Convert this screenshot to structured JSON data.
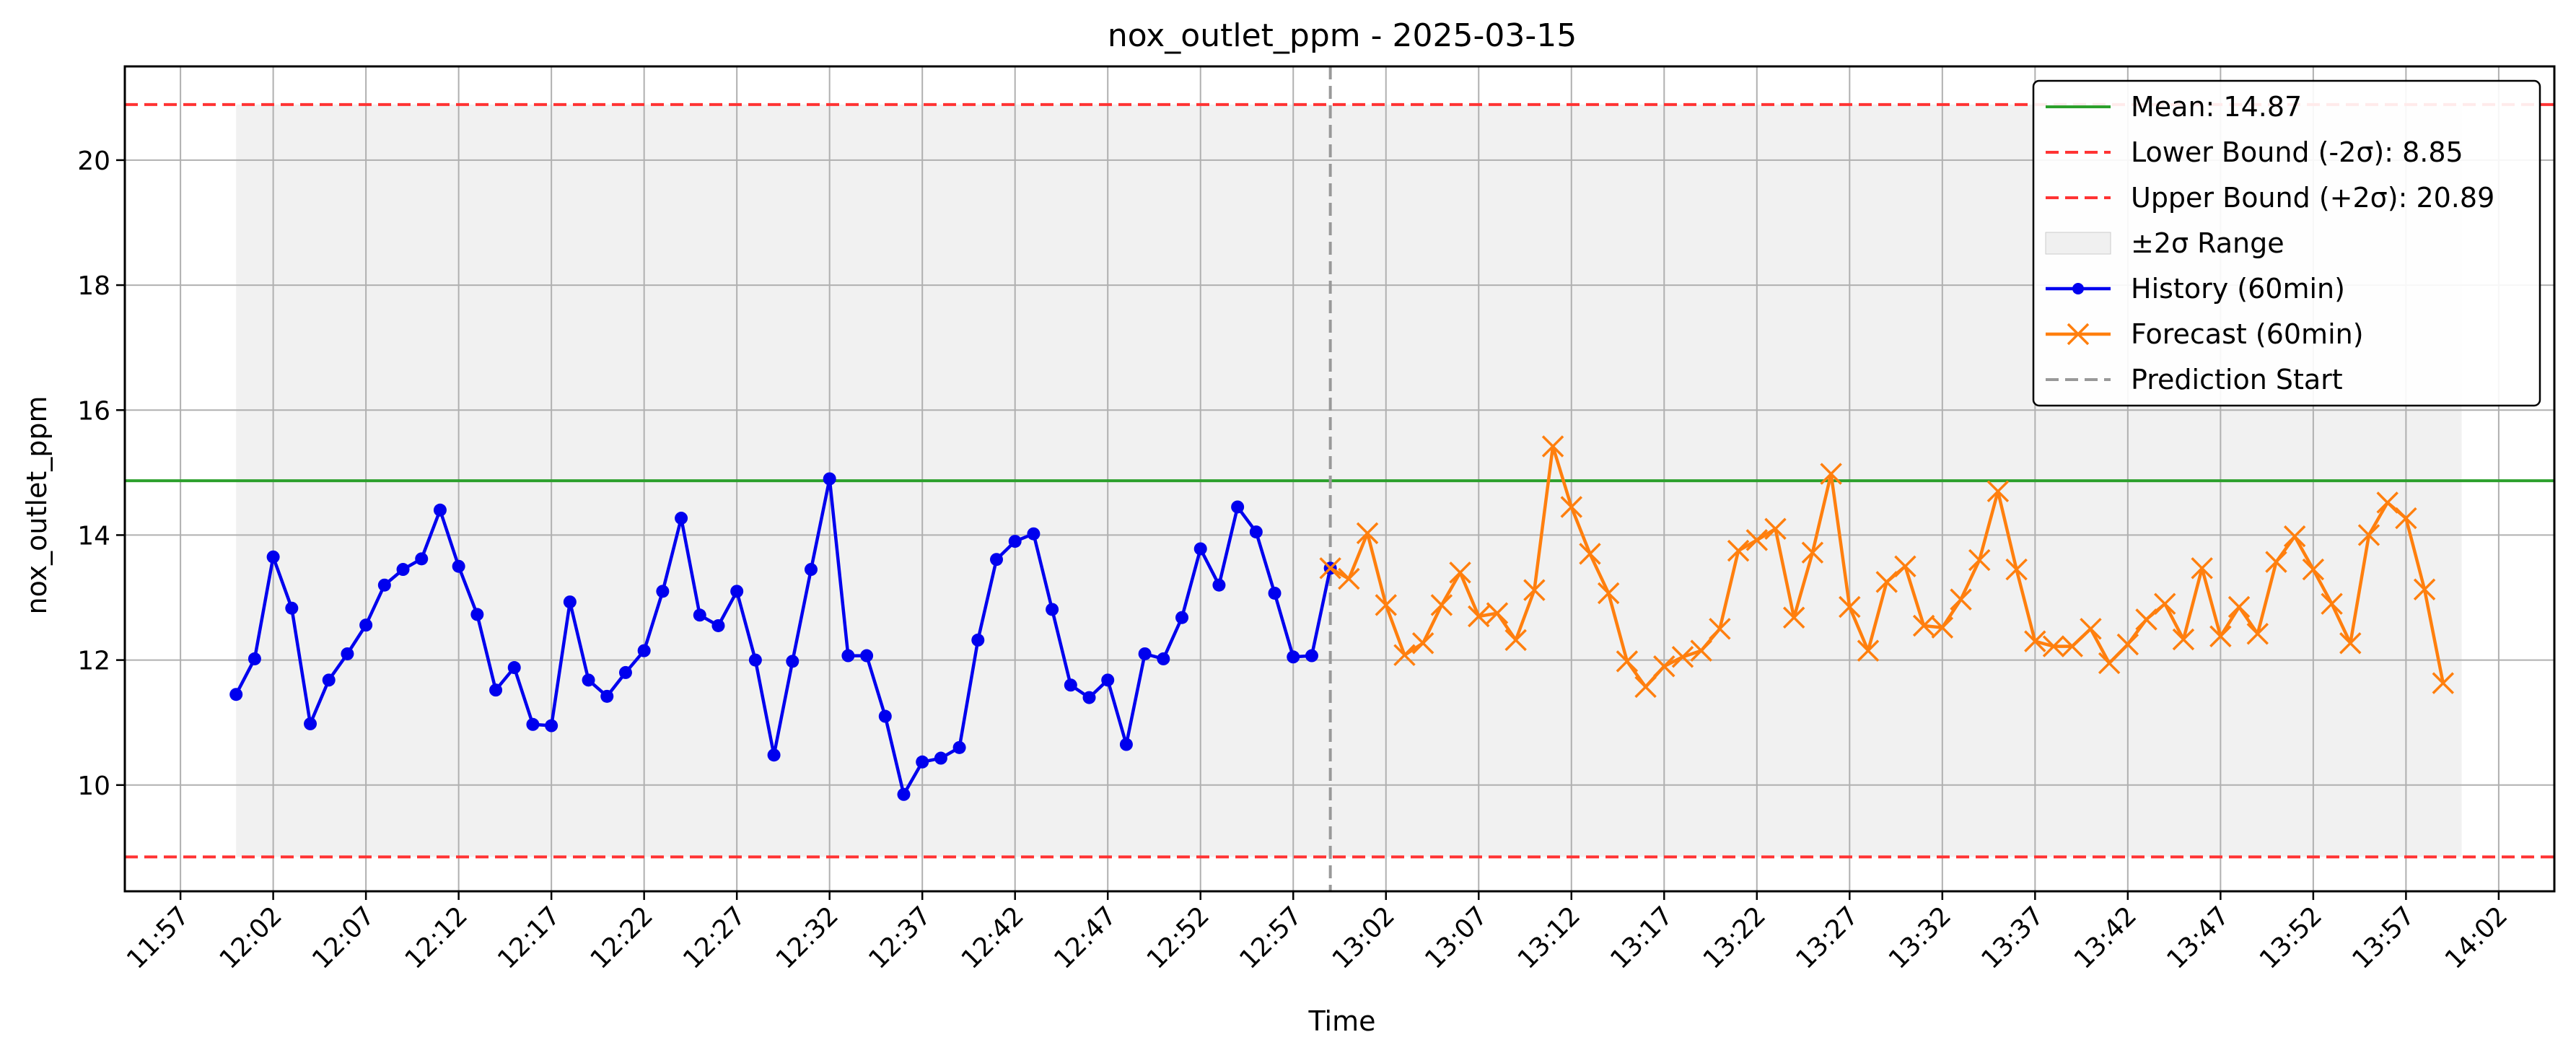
{
  "chart_data": {
    "type": "line",
    "title": "nox_outlet_ppm - 2025-03-15",
    "xlabel": "Time",
    "ylabel": "nox_outlet_ppm",
    "ylim": [
      8.3,
      21.5
    ],
    "xlim": [
      "11:54",
      "14:05"
    ],
    "grid": true,
    "legend_position": "top-right",
    "x_ticks": [
      "11:57",
      "12:02",
      "12:07",
      "12:12",
      "12:17",
      "12:22",
      "12:27",
      "12:32",
      "12:37",
      "12:42",
      "12:47",
      "12:52",
      "12:57",
      "13:02",
      "13:07",
      "13:12",
      "13:17",
      "13:22",
      "13:27",
      "13:32",
      "13:37",
      "13:42",
      "13:47",
      "13:52",
      "13:57",
      "14:02"
    ],
    "y_ticks": [
      "10",
      "12",
      "14",
      "16",
      "18",
      "20"
    ],
    "reference_lines": {
      "mean": {
        "label": "Mean: 14.87",
        "value": 14.87,
        "color": "#2ca02c"
      },
      "lower": {
        "label": "Lower Bound (-2σ): 8.85",
        "value": 8.85,
        "color": "#ff3333"
      },
      "upper": {
        "label": "Upper Bound (+2σ): 20.89",
        "value": 20.89,
        "color": "#ff3333"
      }
    },
    "band": {
      "label": "±2σ Range",
      "from": 8.85,
      "to": 20.89,
      "x_start": "12:00",
      "x_end": "14:00",
      "color": "#dddddd"
    },
    "prediction_start": {
      "label": "Prediction Start",
      "x": "12:59",
      "color": "#999999"
    },
    "series": [
      {
        "name": "History (60min)",
        "color": "#0000ee",
        "marker": "circle",
        "x_start": "12:00",
        "step_minutes": 1,
        "values": [
          11.45,
          12.02,
          13.65,
          12.83,
          10.98,
          11.68,
          12.1,
          12.56,
          13.2,
          13.45,
          13.62,
          14.4,
          13.5,
          12.73,
          11.52,
          11.88,
          10.97,
          10.95,
          12.93,
          11.68,
          11.42,
          11.8,
          12.15,
          13.1,
          14.27,
          12.72,
          12.55,
          13.1,
          12.0,
          10.48,
          11.98,
          13.45,
          14.9,
          12.07,
          12.07,
          11.1,
          9.85,
          10.37,
          10.43,
          10.6,
          12.32,
          13.61,
          13.9,
          14.02,
          12.81,
          11.6,
          11.4,
          11.68,
          10.65,
          12.1,
          12.02,
          12.68,
          13.78,
          13.2,
          14.45,
          14.05,
          13.07,
          12.05,
          12.07,
          13.47
        ]
      },
      {
        "name": "Forecast (60min)",
        "color": "#ff7f0e",
        "marker": "x",
        "x_start": "12:59",
        "step_minutes": 1,
        "values": [
          13.47,
          13.3,
          14.03,
          12.88,
          12.08,
          12.27,
          12.88,
          13.4,
          12.7,
          12.75,
          12.32,
          13.12,
          15.42,
          14.45,
          13.7,
          13.07,
          11.98,
          11.57,
          11.9,
          12.05,
          12.15,
          12.5,
          13.75,
          13.92,
          14.1,
          12.68,
          13.72,
          14.98,
          12.85,
          12.15,
          13.25,
          13.5,
          12.55,
          12.52,
          12.97,
          13.6,
          14.7,
          13.45,
          12.3,
          12.22,
          12.22,
          12.5,
          11.95,
          12.25,
          12.65,
          12.9,
          12.33,
          13.47,
          12.38,
          12.85,
          12.42,
          13.57,
          13.98,
          13.45,
          12.9,
          12.27,
          14.0,
          14.52,
          14.27,
          13.13,
          11.63
        ]
      }
    ]
  }
}
